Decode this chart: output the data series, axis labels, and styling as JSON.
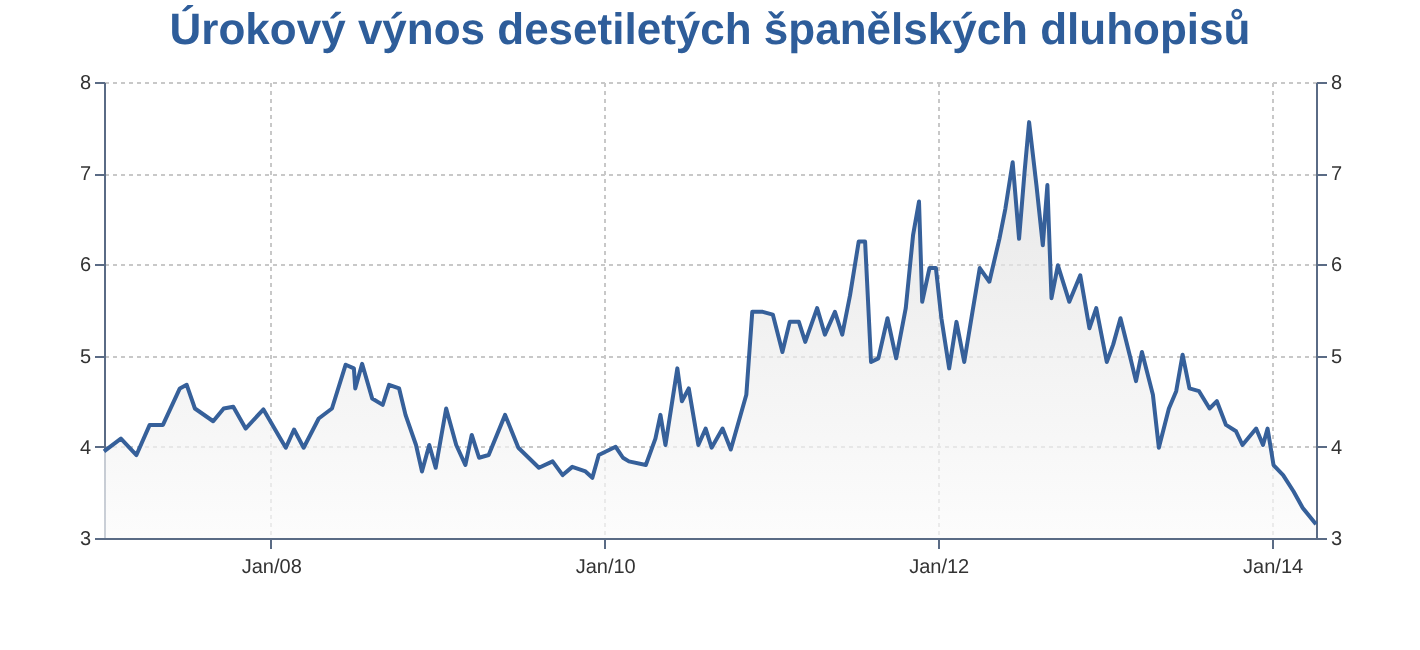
{
  "chart_data": {
    "type": "area",
    "title": "Úrokový výnos desetiletých španělských dluhopisů",
    "x": [
      "2007-01-01",
      "2007-02-07",
      "2007-03-13",
      "2007-04-11",
      "2007-05-10",
      "2007-06-16",
      "2007-07-01",
      "2007-07-19",
      "2007-08-28",
      "2007-09-20",
      "2007-10-11",
      "2007-11-07",
      "2007-12-16",
      "2008-01-22",
      "2008-02-03",
      "2008-02-21",
      "2008-03-13",
      "2008-04-15",
      "2008-05-14",
      "2008-06-13",
      "2008-07-01",
      "2008-07-04",
      "2008-07-19",
      "2008-08-10",
      "2008-09-02",
      "2008-09-16",
      "2008-10-08",
      "2008-10-22",
      "2008-11-14",
      "2008-11-27",
      "2008-12-13",
      "2008-12-27",
      "2009-01-19",
      "2009-02-10",
      "2009-03-02",
      "2009-03-16",
      "2009-04-01",
      "2009-04-22",
      "2009-05-28",
      "2009-06-26",
      "2009-08-10",
      "2009-09-09",
      "2009-10-01",
      "2009-10-22",
      "2009-11-20",
      "2009-12-05",
      "2009-12-19",
      "2010-01-25",
      "2010-02-10",
      "2010-02-23",
      "2010-04-01",
      "2010-04-22",
      "2010-05-03",
      "2010-05-14",
      "2010-06-09",
      "2010-06-19",
      "2010-07-04",
      "2010-07-25",
      "2010-08-10",
      "2010-08-23",
      "2010-09-16",
      "2010-10-04",
      "2010-11-07",
      "2010-11-20",
      "2010-12-13",
      "2011-01-04",
      "2011-01-25",
      "2011-02-10",
      "2011-03-02",
      "2011-03-16",
      "2011-04-11",
      "2011-04-28",
      "2011-05-20",
      "2011-06-05",
      "2011-06-22",
      "2011-07-11",
      "2011-07-25",
      "2011-08-07",
      "2011-08-23",
      "2011-09-12",
      "2011-10-01",
      "2011-10-22",
      "2011-11-07",
      "2011-11-20",
      "2011-11-27",
      "2011-12-13",
      "2011-12-27",
      "2012-01-08",
      "2012-01-25",
      "2012-02-10",
      "2012-02-27",
      "2012-03-16",
      "2012-04-01",
      "2012-04-22",
      "2012-05-14",
      "2012-05-27",
      "2012-06-12",
      "2012-06-26",
      "2012-07-08",
      "2012-07-18",
      "2012-08-03",
      "2012-08-17",
      "2012-08-27",
      "2012-09-05",
      "2012-09-19",
      "2012-10-14",
      "2012-11-07",
      "2012-11-27",
      "2012-12-12",
      "2013-01-04",
      "2013-01-18",
      "2013-02-03",
      "2013-02-23",
      "2013-03-09",
      "2013-03-22",
      "2013-04-15",
      "2013-04-28",
      "2013-05-20",
      "2013-06-05",
      "2013-06-19",
      "2013-07-04",
      "2013-07-25",
      "2013-08-17",
      "2013-09-02",
      "2013-09-22",
      "2013-10-14",
      "2013-10-28",
      "2013-11-27",
      "2013-12-12",
      "2013-12-22",
      "2014-01-04",
      "2014-01-25",
      "2014-02-17",
      "2014-03-09",
      "2014-04-07"
    ],
    "series": [
      {
        "color": "#36609a",
        "values": [
          3.95,
          4.09,
          3.91,
          4.24,
          4.24,
          4.64,
          4.68,
          4.42,
          4.28,
          4.42,
          4.44,
          4.2,
          4.41,
          4.09,
          3.99,
          4.19,
          3.99,
          4.31,
          4.42,
          4.9,
          4.86,
          4.64,
          4.91,
          4.53,
          4.46,
          4.68,
          4.64,
          4.35,
          4.02,
          3.73,
          4.02,
          3.77,
          4.42,
          4.02,
          3.8,
          4.13,
          3.88,
          3.91,
          4.35,
          3.99,
          3.77,
          3.84,
          3.69,
          3.78,
          3.73,
          3.66,
          3.91,
          4.0,
          3.88,
          3.84,
          3.8,
          4.09,
          4.35,
          4.02,
          4.86,
          4.5,
          4.64,
          4.02,
          4.2,
          3.99,
          4.2,
          3.97,
          4.57,
          5.48,
          5.48,
          5.45,
          5.04,
          5.37,
          5.37,
          5.15,
          5.52,
          5.23,
          5.48,
          5.23,
          5.66,
          6.25,
          6.25,
          4.93,
          4.97,
          5.41,
          4.97,
          5.52,
          6.32,
          6.69,
          5.59,
          5.96,
          5.96,
          5.41,
          4.86,
          5.37,
          4.93,
          5.48,
          5.96,
          5.81,
          6.28,
          6.61,
          7.12,
          6.28,
          7.01,
          7.56,
          6.87,
          6.21,
          6.87,
          5.63,
          5.99,
          5.59,
          5.88,
          5.3,
          5.52,
          4.93,
          5.12,
          5.41,
          5.01,
          4.72,
          5.04,
          4.57,
          3.99,
          4.42,
          4.61,
          5.01,
          4.64,
          4.61,
          4.42,
          4.5,
          4.24,
          4.17,
          4.02,
          4.2,
          4.02,
          4.2,
          3.8,
          3.69,
          3.51,
          3.33,
          3.15
        ]
      }
    ],
    "xlim": [
      "2007-01-01",
      "2014-04-07"
    ],
    "xticks": [
      {
        "value": "2008-01-01",
        "label": "Jan/08"
      },
      {
        "value": "2010-01-01",
        "label": "Jan/10"
      },
      {
        "value": "2012-01-01",
        "label": "Jan/12"
      },
      {
        "value": "2014-01-01",
        "label": "Jan/14"
      }
    ],
    "ylim": [
      3,
      8
    ],
    "yticks": [
      3,
      4,
      5,
      6,
      7,
      8
    ],
    "y2lim": [
      3,
      8
    ],
    "y2ticks": [
      3,
      4,
      5,
      6,
      7,
      8
    ],
    "grid": true
  }
}
